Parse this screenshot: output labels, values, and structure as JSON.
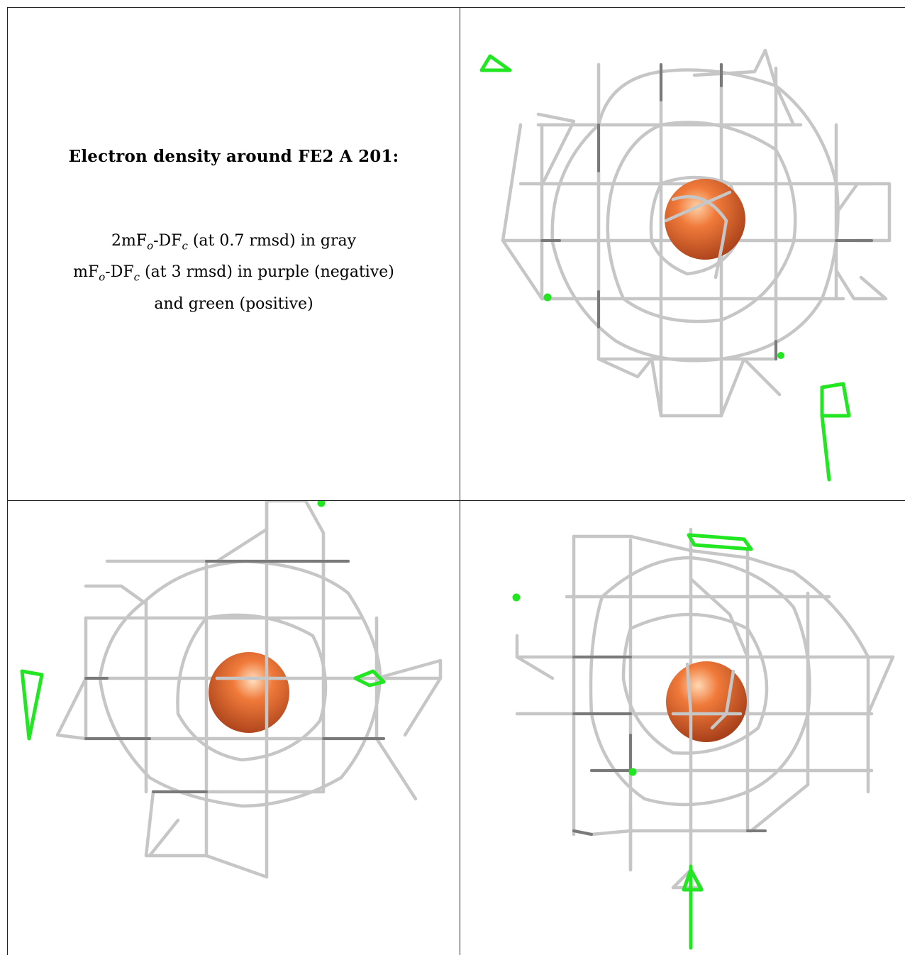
{
  "title": "Electron density around FE2 A 201:",
  "legend": {
    "line1": {
      "prefix": "2mF",
      "sub1": "o",
      "mid": "-DF",
      "sub2": "c",
      "suffix": " (at 0.7 rmsd) in gray"
    },
    "line2": {
      "prefix": "mF",
      "sub1": "o",
      "mid": "-DF",
      "sub2": "c",
      "suffix": " (at 3 rmsd) in purple (negative)"
    },
    "line3": "and green (positive)"
  },
  "colors": {
    "mesh": "#c4c4c4",
    "mesh_dark": "#7a7a7a",
    "positive": "#22e622",
    "atom": "#e8622a"
  },
  "views": [
    "view-top-right",
    "view-bottom-left",
    "view-bottom-right"
  ]
}
